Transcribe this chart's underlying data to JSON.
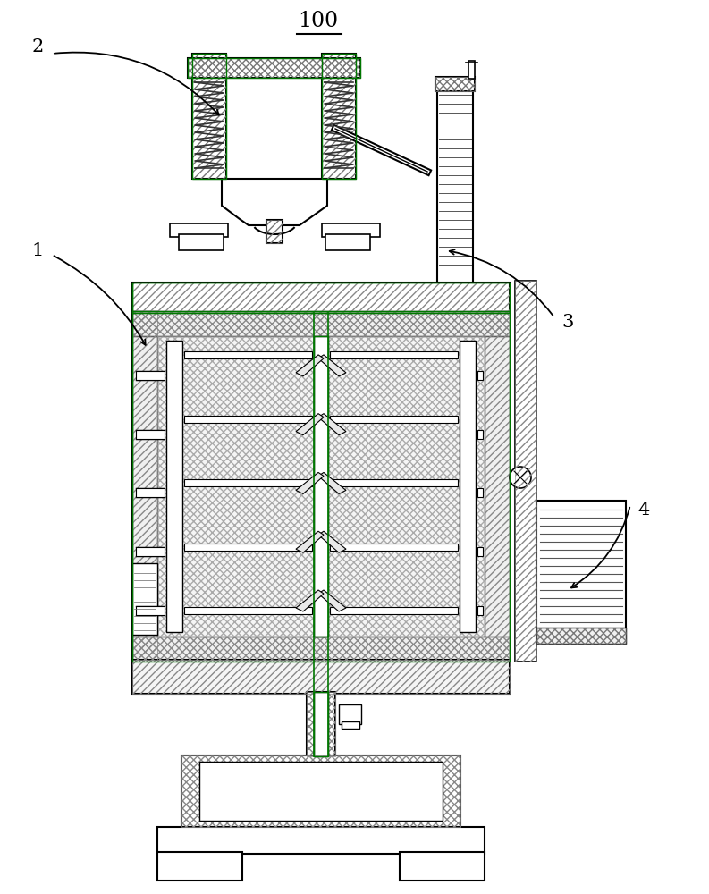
{
  "title": "100",
  "bg_color": "#ffffff",
  "lc": "#000000",
  "gc": "#007700",
  "labels": [
    "1",
    "2",
    "3",
    "4"
  ],
  "hatch_diag": "////",
  "hatch_cross": "xxxx",
  "hatch_horiz": "----"
}
